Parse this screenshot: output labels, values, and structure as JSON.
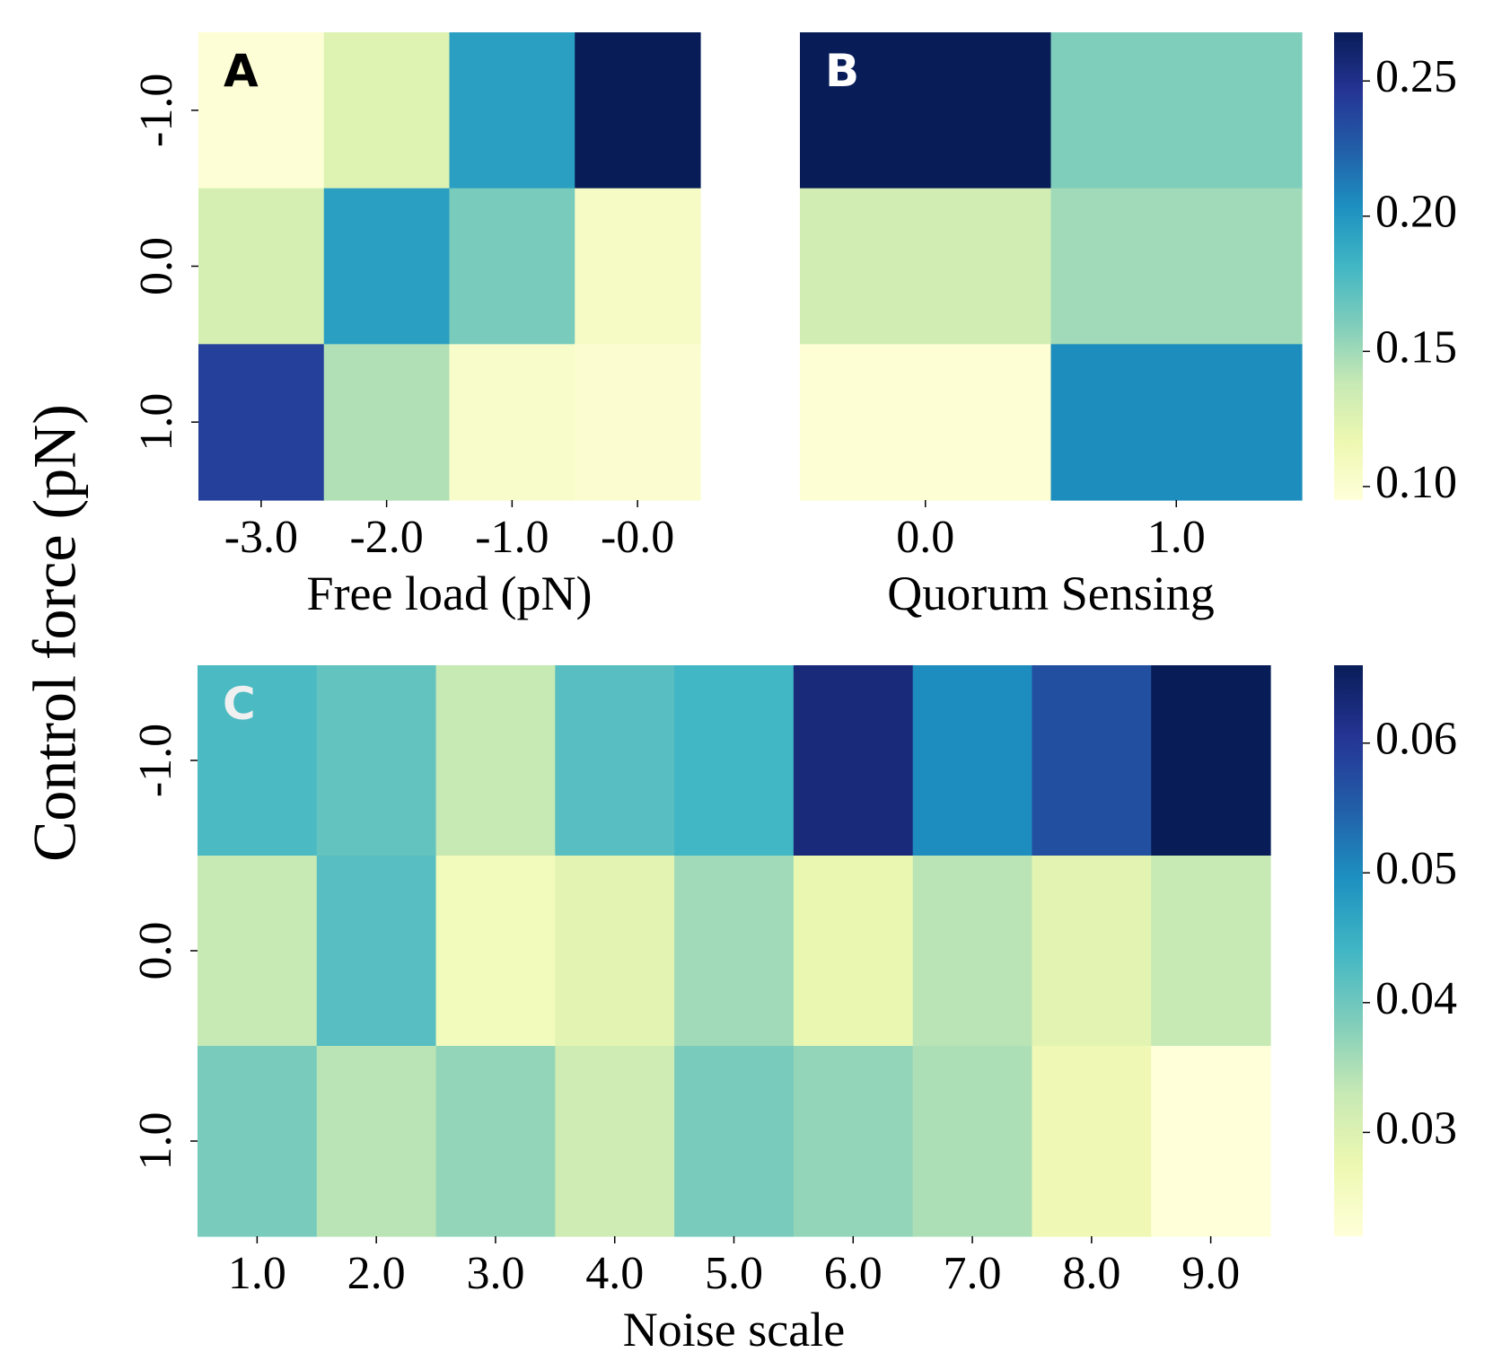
{
  "figure": {
    "shared_ylabel": "Control force (pN)"
  },
  "colors": {
    "cmap": [
      "#ffffd9",
      "#edf8b1",
      "#c7e9b4",
      "#7fcdbb",
      "#41b6c4",
      "#1d91c0",
      "#225ea8",
      "#253494",
      "#081d58"
    ]
  },
  "chart_data": [
    {
      "id": "A",
      "type": "heatmap",
      "panel_label": "A",
      "panel_label_color": "#000000",
      "xlabel": "Free load (pN)",
      "ylabel": "Control force (pN)",
      "x_categories": [
        "-3.0",
        "-2.0",
        "-1.0",
        "-0.0"
      ],
      "y_categories": [
        "-1.0",
        "0.0",
        "1.0"
      ],
      "values": [
        [
          0.097,
          0.125,
          0.195,
          0.268
        ],
        [
          0.13,
          0.195,
          0.162,
          0.106
        ],
        [
          0.24,
          0.145,
          0.103,
          0.1
        ]
      ],
      "vmin": 0.095,
      "vmax": 0.268,
      "colorbar": null
    },
    {
      "id": "B",
      "type": "heatmap",
      "panel_label": "B",
      "panel_label_color": "#ffffff",
      "xlabel": "Quorum Sensing",
      "ylabel": "",
      "x_categories": [
        "0.0",
        "1.0"
      ],
      "y_categories": [
        "-1.0",
        "0.0",
        "1.0"
      ],
      "values": [
        [
          0.268,
          0.16
        ],
        [
          0.132,
          0.15
        ],
        [
          0.098,
          0.205
        ]
      ],
      "vmin": 0.095,
      "vmax": 0.268,
      "colorbar": {
        "ticks": [
          0.1,
          0.15,
          0.2,
          0.25
        ],
        "tick_labels": [
          "0.10",
          "0.15",
          "0.20",
          "0.25"
        ]
      }
    },
    {
      "id": "C",
      "type": "heatmap",
      "panel_label": "C",
      "panel_label_color": "#f0f0f0",
      "xlabel": "Noise scale",
      "ylabel": "Control force (pN)",
      "x_categories": [
        "1.0",
        "2.0",
        "3.0",
        "4.0",
        "5.0",
        "6.0",
        "7.0",
        "8.0",
        "9.0"
      ],
      "y_categories": [
        "-1.0",
        "0.0",
        "1.0"
      ],
      "values": [
        [
          0.043,
          0.041,
          0.033,
          0.042,
          0.044,
          0.063,
          0.05,
          0.057,
          0.066
        ],
        [
          0.033,
          0.042,
          0.026,
          0.029,
          0.036,
          0.028,
          0.034,
          0.029,
          0.033
        ],
        [
          0.039,
          0.034,
          0.037,
          0.032,
          0.039,
          0.037,
          0.035,
          0.027,
          0.022
        ]
      ],
      "vmin": 0.022,
      "vmax": 0.066,
      "colorbar": {
        "ticks": [
          0.03,
          0.04,
          0.05,
          0.06
        ],
        "tick_labels": [
          "0.03",
          "0.04",
          "0.05",
          "0.06"
        ]
      }
    }
  ]
}
